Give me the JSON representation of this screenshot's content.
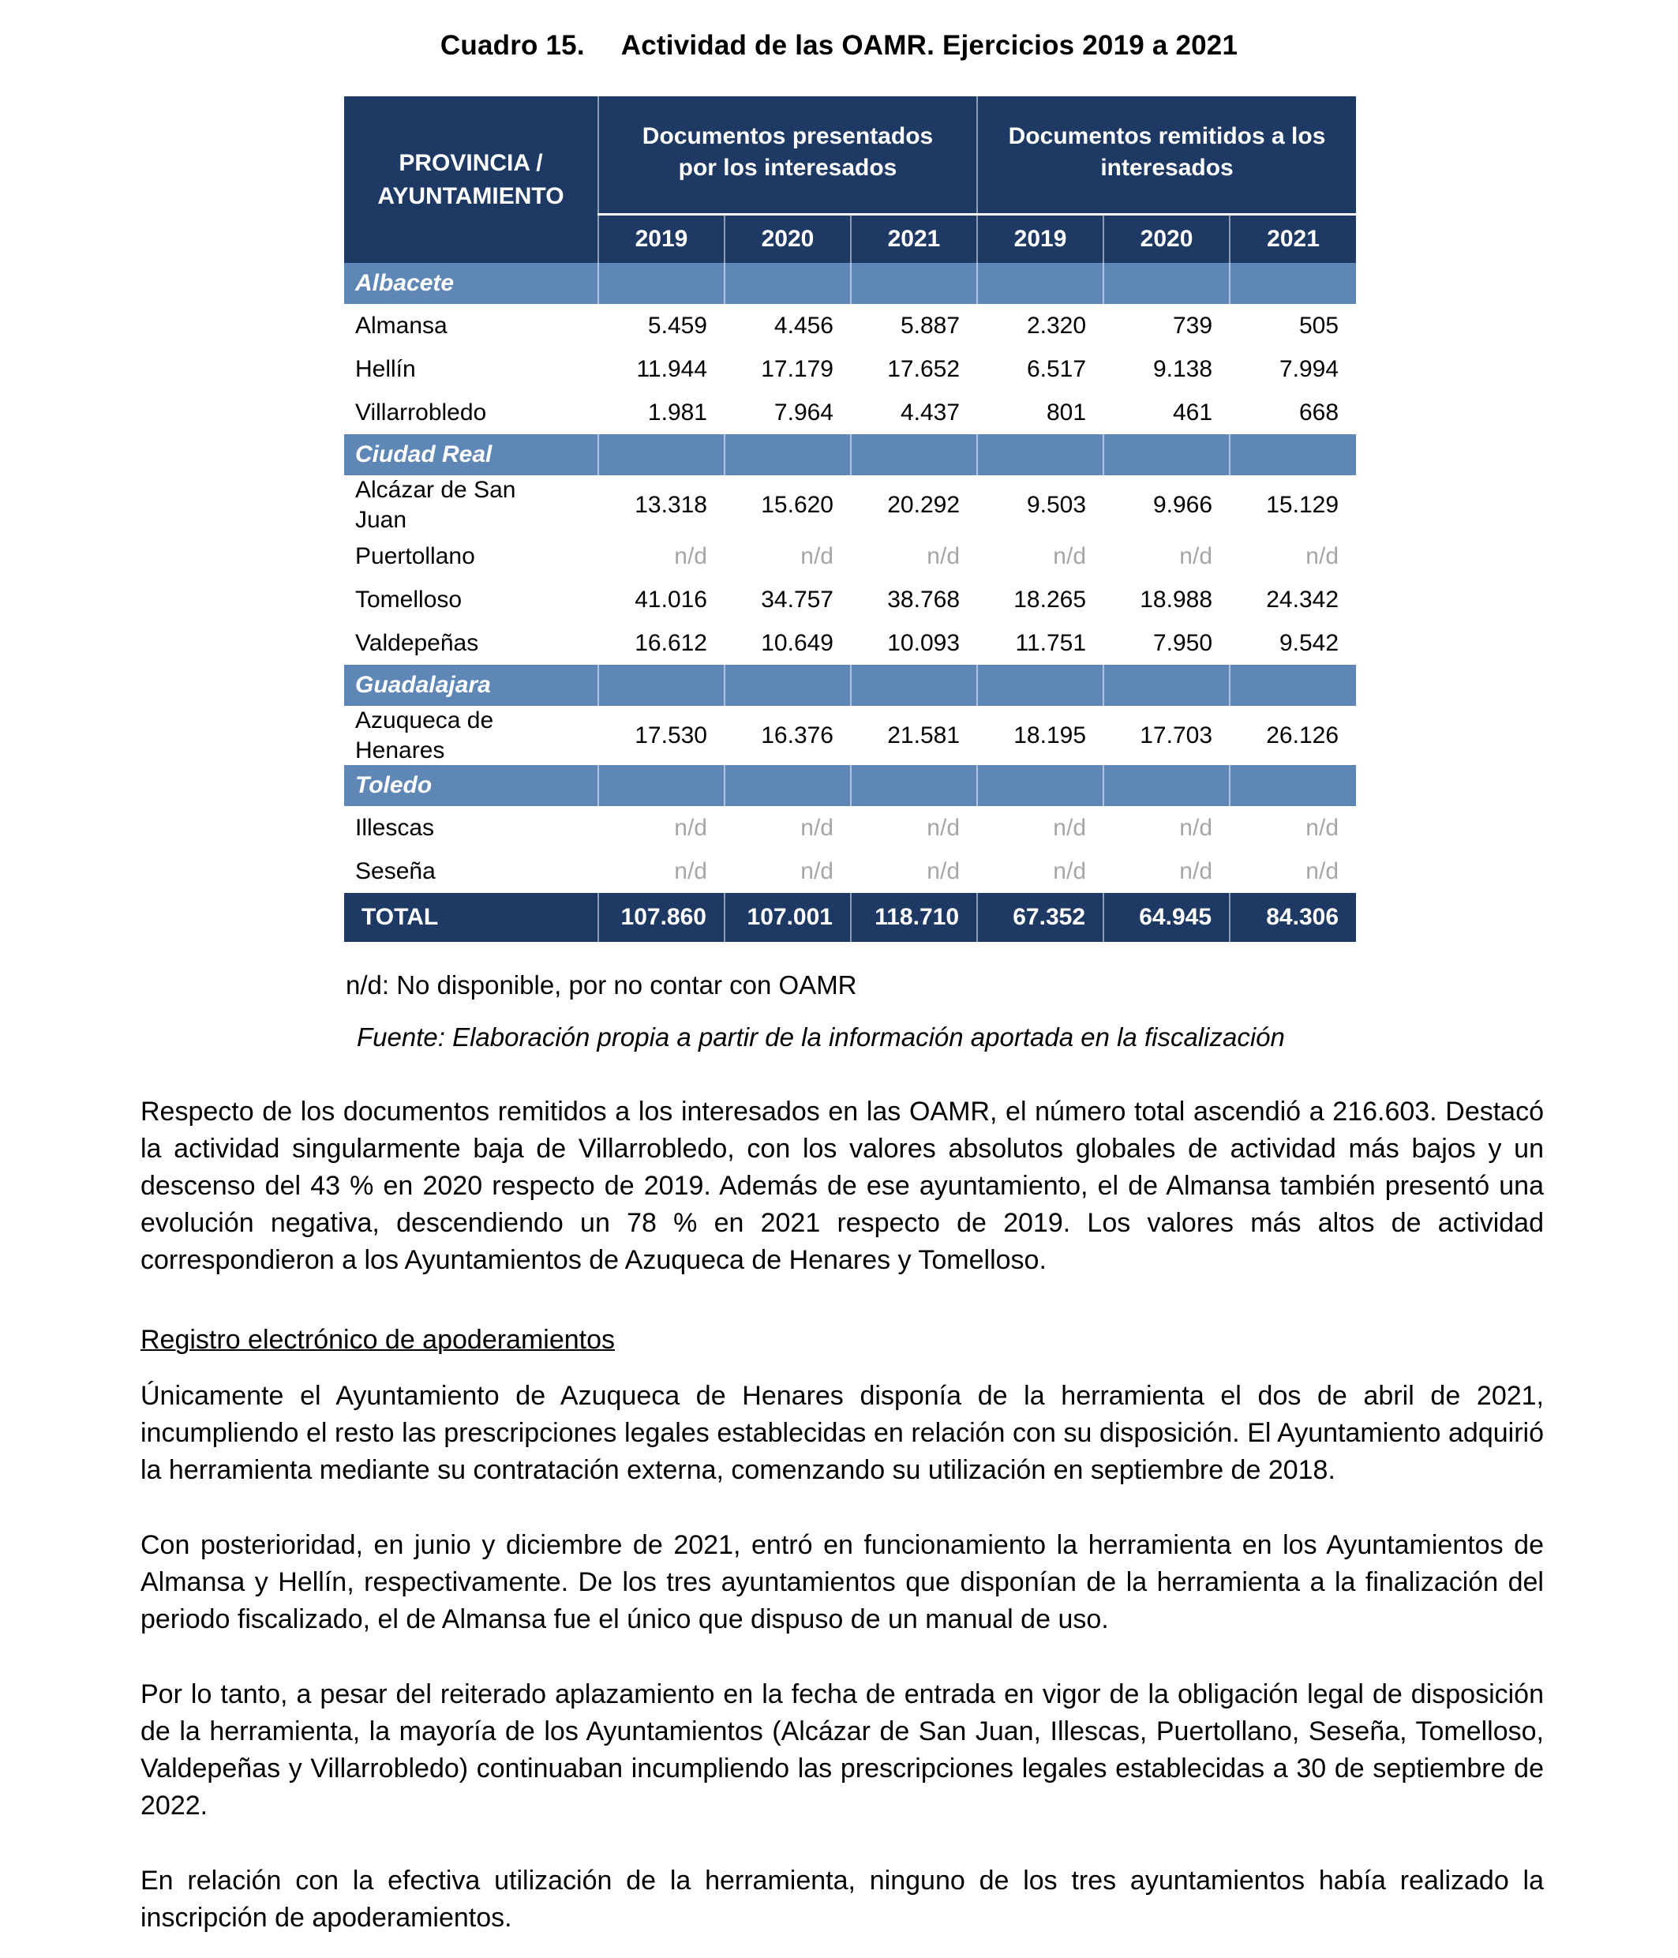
{
  "title": {
    "label": "Cuadro 15.",
    "text": "Actividad de las OAMR. Ejercicios 2019 a 2021"
  },
  "table": {
    "header": {
      "col1": "PROVINCIA / AYUNTAMIENTO",
      "group1": "Documentos presentados por los interesados",
      "group2": "Documentos remitidos a los interesados",
      "years": [
        "2019",
        "2020",
        "2021",
        "2019",
        "2020",
        "2021"
      ]
    },
    "sections": [
      {
        "name": "Albacete",
        "rows": [
          {
            "name": "Almansa",
            "values": [
              "5.459",
              "4.456",
              "5.887",
              "2.320",
              "739",
              "505"
            ]
          },
          {
            "name": "Hellín",
            "values": [
              "11.944",
              "17.179",
              "17.652",
              "6.517",
              "9.138",
              "7.994"
            ]
          },
          {
            "name": "Villarrobledo",
            "values": [
              "1.981",
              "7.964",
              "4.437",
              "801",
              "461",
              "668"
            ]
          }
        ]
      },
      {
        "name": "Ciudad Real",
        "rows": [
          {
            "name": "Alcázar de San Juan",
            "values": [
              "13.318",
              "15.620",
              "20.292",
              "9.503",
              "9.966",
              "15.129"
            ]
          },
          {
            "name": "Puertollano",
            "values": [
              "n/d",
              "n/d",
              "n/d",
              "n/d",
              "n/d",
              "n/d"
            ]
          },
          {
            "name": "Tomelloso",
            "values": [
              "41.016",
              "34.757",
              "38.768",
              "18.265",
              "18.988",
              "24.342"
            ]
          },
          {
            "name": "Valdepeñas",
            "values": [
              "16.612",
              "10.649",
              "10.093",
              "11.751",
              "7.950",
              "9.542"
            ]
          }
        ]
      },
      {
        "name": "Guadalajara",
        "rows": [
          {
            "name": "Azuqueca de Henares",
            "values": [
              "17.530",
              "16.376",
              "21.581",
              "18.195",
              "17.703",
              "26.126"
            ]
          }
        ]
      },
      {
        "name": "Toledo",
        "rows": [
          {
            "name": "Illescas",
            "values": [
              "n/d",
              "n/d",
              "n/d",
              "n/d",
              "n/d",
              "n/d"
            ]
          },
          {
            "name": "Seseña",
            "values": [
              "n/d",
              "n/d",
              "n/d",
              "n/d",
              "n/d",
              "n/d"
            ]
          }
        ]
      }
    ],
    "total": {
      "label": "TOTAL",
      "values": [
        "107.860",
        "107.001",
        "118.710",
        "67.352",
        "64.945",
        "84.306"
      ]
    }
  },
  "notes": {
    "nd": "n/d: No disponible, por no contar con OAMR",
    "fuente": "Fuente: Elaboración propia a partir de la información aportada en la fiscalización"
  },
  "heading": "Registro electrónico de apoderamientos",
  "paragraphs": [
    "Respecto de los documentos remitidos a los interesados en las OAMR, el número total ascendió a 216.603. Destacó la actividad singularmente baja de Villarrobledo, con los valores absolutos globales de actividad más bajos y un descenso del 43 % en 2020 respecto de 2019. Además de ese ayuntamiento, el de Almansa también presentó una evolución negativa, descendiendo un 78 % en 2021 respecto de 2019. Los valores más altos de actividad correspondieron a los Ayuntamientos de Azuqueca de Henares y Tomelloso.",
    "Únicamente el Ayuntamiento de Azuqueca de Henares disponía de la herramienta el dos de abril de 2021, incumpliendo el resto las prescripciones legales establecidas en relación con su disposición. El Ayuntamiento adquirió la herramienta mediante su contratación externa, comenzando su utilización en septiembre de 2018.",
    "Con posterioridad, en junio y diciembre de 2021, entró en funcionamiento la herramienta en los Ayuntamientos de Almansa y Hellín, respectivamente. De los tres ayuntamientos que disponían de la herramienta a la finalización del periodo fiscalizado, el de Almansa fue el único que dispuso de un manual de uso.",
    "Por lo tanto, a pesar del reiterado aplazamiento en la fecha de entrada en vigor de la obligación legal de disposición de la herramienta, la mayoría de los Ayuntamientos (Alcázar de San Juan, Illescas, Puertollano, Seseña, Tomelloso, Valdepeñas y Villarrobledo) continuaban incumpliendo las prescripciones legales establecidas a 30 de septiembre de 2022.",
    "En relación con la efectiva utilización de la herramienta, ninguno de los tres ayuntamientos había realizado la inscripción de apoderamientos."
  ],
  "colors": {
    "header_bg": "#1e3a64",
    "band_bg": "#5f87b5",
    "nd_text": "#a6a6a6",
    "separator": "rgba(255,255,255,0.5)",
    "text": "#000000"
  }
}
